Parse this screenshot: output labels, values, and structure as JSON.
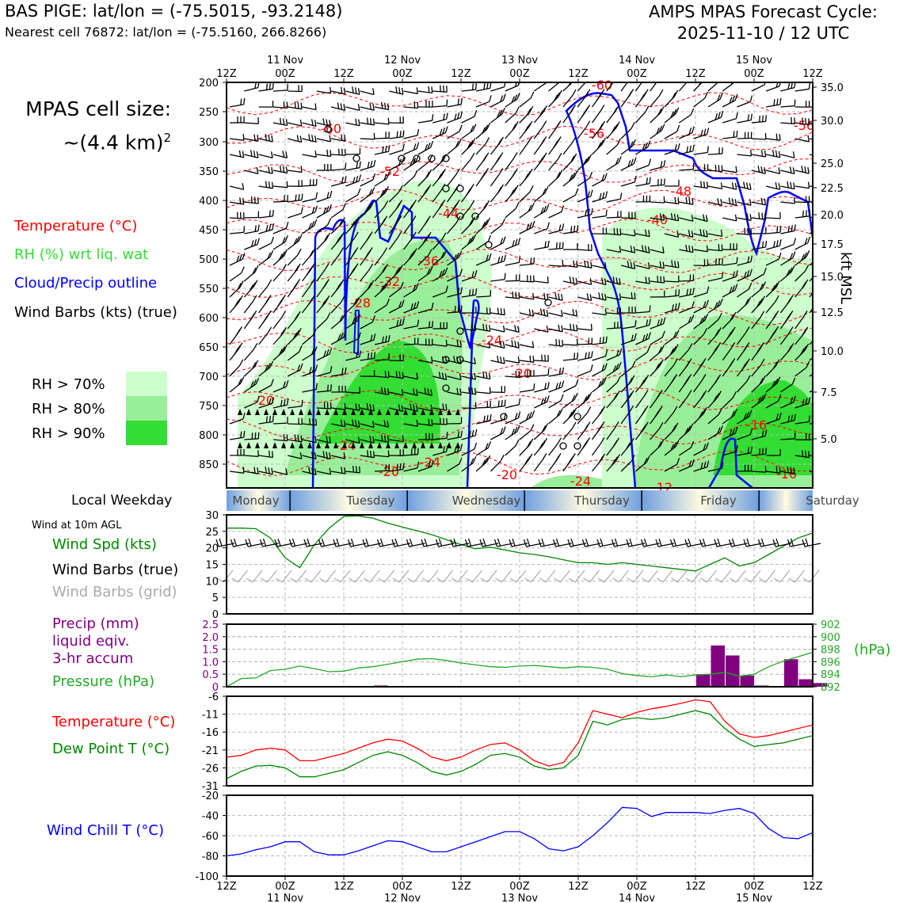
{
  "header": {
    "title_left": "BAS PIGE: lat/lon = (-75.5015, -93.2148)",
    "subtitle_left": "Nearest cell 76872: lat/lon = (-75.5160, 266.8266)",
    "title_right_line1": "AMPS MPAS Forecast Cycle:",
    "title_right_line2": "2025-11-10 / 12 UTC"
  },
  "cell_size": {
    "line1": "MPAS cell size:",
    "line2": "~(4.4 km)",
    "exponent": "2"
  },
  "legend": {
    "temperature": "Temperature (°C)",
    "rh": "RH (%) wrt liq. wat",
    "cloud": "Cloud/Precip outline",
    "wind": "Wind Barbs (kts) (true)",
    "rh70": "RH > 70%",
    "rh80": "RH > 80%",
    "rh90": "RH > 90%",
    "colors": {
      "temp": "#ff0000",
      "rh_text": "#33dd33",
      "cloud": "#0000ff",
      "rh70": "#ccffcc",
      "rh80": "#99ee99",
      "rh90": "#33dd33"
    }
  },
  "time_axis": {
    "top_hours": [
      "12Z",
      "00Z",
      "12Z",
      "00Z",
      "12Z",
      "00Z",
      "12Z",
      "00Z",
      "12Z",
      "00Z",
      "12Z"
    ],
    "dates": [
      "11 Nov",
      "12 Nov",
      "13 Nov",
      "14 Nov",
      "15 Nov"
    ],
    "bottom_hours": [
      "12Z",
      "00Z",
      "12Z",
      "00Z",
      "12Z",
      "00Z",
      "12Z",
      "00Z",
      "12Z",
      "00Z",
      "12Z"
    ]
  },
  "pressure_axis": [
    "200",
    "250",
    "300",
    "350",
    "400",
    "450",
    "500",
    "550",
    "600",
    "650",
    "700",
    "750",
    "800",
    "850"
  ],
  "height_axis": {
    "label": "kft MSL",
    "ticks": [
      "35.0",
      "30.0",
      "25.0",
      "22.5",
      "20.0",
      "17.5",
      "15.0",
      "12.5",
      "10.0",
      "7.5",
      "5.0"
    ]
  },
  "weekday": {
    "label": "Local Weekday",
    "days": [
      "Monday",
      "Tuesday",
      "Wednesday",
      "Thursday",
      "Friday",
      "Saturday"
    ]
  },
  "wind_panel": {
    "header": "Wind at 10m AGL",
    "spd_label": "Wind Spd (kts)",
    "barbs_true_label": "Wind Barbs (true)",
    "barbs_grid_label": "Wind Barbs (grid)",
    "yticks": [
      "30",
      "25",
      "20",
      "15",
      "10",
      "5",
      "0"
    ]
  },
  "precip_panel": {
    "precip_l1": "Precip (mm)",
    "precip_l2": "liquid eqiv.",
    "precip_l3": "3-hr accum",
    "pressure_label": "Pressure (hPa)",
    "left_ticks": [
      "2.5",
      "2.0",
      "1.5",
      "1.0",
      "0.5",
      "0"
    ],
    "right_ticks": [
      "902",
      "900",
      "898",
      "896",
      "894",
      "892"
    ],
    "right_unit": "(hPa)"
  },
  "temp_panel": {
    "temp_label": "Temperature (°C)",
    "dew_label": "Dew Point T (°C)",
    "yticks": [
      "-6",
      "-11",
      "-16",
      "-21",
      "-26",
      "-31"
    ]
  },
  "chill_panel": {
    "label": "Wind Chill T (°C)",
    "yticks": [
      "-20",
      "-40",
      "-60",
      "-80",
      "-100"
    ]
  },
  "chart_data": [
    {
      "type": "line",
      "name": "wind_speed_10m",
      "x_hours": [
        0,
        3,
        6,
        9,
        12,
        15,
        18,
        21,
        24,
        27,
        30,
        33,
        36,
        39,
        42,
        45,
        48,
        51,
        54,
        57,
        60,
        63,
        66,
        69,
        72,
        75,
        78,
        81,
        84,
        87,
        90,
        93,
        96,
        99,
        102,
        105,
        108,
        111,
        114,
        117,
        120
      ],
      "series": [
        {
          "name": "Wind Spd (kts)",
          "color": "#008800",
          "values": [
            26,
            26,
            25.8,
            23,
            17,
            14,
            21,
            26,
            29.5,
            29.7,
            29,
            27.5,
            26.3,
            25.2,
            24,
            22.5,
            21,
            19.7,
            20.2,
            19.4,
            18.5,
            18,
            17.3,
            16.4,
            15.5,
            15.5,
            15,
            15.5,
            15,
            14.5,
            14,
            13.5,
            13,
            15,
            17,
            14.5,
            15.5,
            18,
            20.5,
            23,
            24.5
          ]
        }
      ],
      "ylim": [
        0,
        30
      ]
    },
    {
      "type": "bar",
      "name": "precip_3hr",
      "bars": [
        {
          "x": 30,
          "v": 0.05
        },
        {
          "x": 96,
          "v": 0.5
        },
        {
          "x": 99,
          "v": 1.65
        },
        {
          "x": 102,
          "v": 1.25
        },
        {
          "x": 105,
          "v": 0.45
        },
        {
          "x": 108,
          "v": 0.05
        },
        {
          "x": 114,
          "v": 1.1
        },
        {
          "x": 117,
          "v": 0.3
        },
        {
          "x": 120,
          "v": 0.15
        }
      ],
      "ylim": [
        0,
        2.5
      ],
      "color": "#800080"
    },
    {
      "type": "line",
      "name": "surface_pressure",
      "x_hours": [
        0,
        3,
        6,
        9,
        12,
        15,
        18,
        21,
        24,
        27,
        30,
        33,
        36,
        39,
        42,
        45,
        48,
        51,
        54,
        57,
        60,
        63,
        66,
        69,
        72,
        75,
        78,
        81,
        84,
        87,
        90,
        93,
        96,
        99,
        102,
        105,
        108,
        111,
        114,
        117,
        120
      ],
      "series": [
        {
          "name": "Pressure (hPa)",
          "color": "#22aa22",
          "values": [
            892,
            893.3,
            893.4,
            894.6,
            894.8,
            895.3,
            894.9,
            894.4,
            894.5,
            895,
            895.2,
            895.6,
            896,
            896.4,
            896.5,
            896.2,
            895.8,
            895.5,
            895.2,
            895.1,
            895.3,
            895.4,
            895.2,
            895,
            895.2,
            895.1,
            894.8,
            894.1,
            893.8,
            893.6,
            893.9,
            893.6,
            893.9,
            894,
            894.3,
            893.7,
            894,
            895.2,
            896.1,
            896.8,
            897.5
          ]
        }
      ],
      "ylim": [
        892,
        902
      ]
    },
    {
      "type": "line",
      "name": "temperature_dewpoint",
      "x_hours": [
        0,
        3,
        6,
        9,
        12,
        15,
        18,
        21,
        24,
        27,
        30,
        33,
        36,
        39,
        42,
        45,
        48,
        51,
        54,
        57,
        60,
        63,
        66,
        69,
        72,
        75,
        78,
        81,
        84,
        87,
        90,
        93,
        96,
        99,
        102,
        105,
        108,
        111,
        114,
        117,
        120
      ],
      "series": [
        {
          "name": "Temperature (°C)",
          "color": "#ff0000",
          "values": [
            -23,
            -22.5,
            -21,
            -20.5,
            -21,
            -24,
            -24,
            -23,
            -22,
            -20.5,
            -19,
            -18,
            -18.5,
            -20.5,
            -23,
            -24,
            -23,
            -21,
            -19.5,
            -19,
            -21,
            -24,
            -25.5,
            -24.5,
            -19,
            -10,
            -11,
            -12,
            -10.5,
            -9.5,
            -8.8,
            -8,
            -7,
            -7.5,
            -13,
            -16.5,
            -17.5,
            -17,
            -16,
            -15,
            -14
          ]
        },
        {
          "name": "Dew Point T (°C)",
          "color": "#008800",
          "values": [
            -29,
            -27,
            -25.5,
            -25.3,
            -26,
            -28.5,
            -28.5,
            -27.5,
            -26.5,
            -24.5,
            -22.5,
            -21.5,
            -22.5,
            -24.5,
            -27,
            -28,
            -27,
            -25,
            -22.5,
            -22,
            -23,
            -25.5,
            -26.5,
            -26,
            -22.5,
            -13,
            -14,
            -12.5,
            -12,
            -12.5,
            -12,
            -11,
            -10,
            -11,
            -15,
            -18,
            -20,
            -19.5,
            -19,
            -18,
            -17
          ]
        }
      ],
      "ylim": [
        -31,
        -6
      ]
    },
    {
      "type": "line",
      "name": "wind_chill",
      "x_hours": [
        0,
        3,
        6,
        9,
        12,
        15,
        18,
        21,
        24,
        27,
        30,
        33,
        36,
        39,
        42,
        45,
        48,
        51,
        54,
        57,
        60,
        63,
        66,
        69,
        72,
        75,
        78,
        81,
        84,
        87,
        90,
        93,
        96,
        99,
        102,
        105,
        108,
        111,
        114,
        117,
        120
      ],
      "series": [
        {
          "name": "Wind Chill T (°C)",
          "color": "#0000ff",
          "values": [
            -80,
            -78,
            -74,
            -71,
            -66,
            -66,
            -76,
            -79,
            -79,
            -75,
            -70,
            -65,
            -66,
            -71,
            -76,
            -76,
            -71,
            -66,
            -61,
            -56,
            -56,
            -63,
            -73,
            -75,
            -71,
            -60,
            -47,
            -32,
            -33,
            -41,
            -37,
            -37,
            -37,
            -38,
            -35,
            -33,
            -38,
            -53,
            -62,
            -63,
            -57
          ]
        }
      ],
      "ylim": [
        -100,
        -20
      ]
    },
    {
      "type": "table",
      "name": "isotherm_labels",
      "labels": [
        "-60",
        "-56",
        "-56",
        "-52",
        "-48",
        "-44",
        "-40",
        "-36",
        "-32",
        "-28",
        "-24",
        "-20",
        "-20",
        "-24",
        "-24",
        "-20",
        "-20",
        "-24",
        "-16",
        "-16",
        "-12",
        "-60"
      ]
    }
  ]
}
